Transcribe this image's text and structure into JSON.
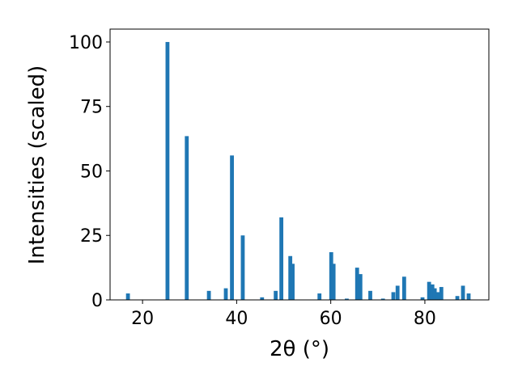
{
  "chart_data": {
    "type": "bar",
    "xlabel": "2θ (°)",
    "ylabel": "Intensities (scaled)",
    "color": "#1f77b4",
    "x": [
      16.9,
      25.3,
      29.4,
      34.1,
      37.7,
      39.0,
      41.3,
      45.4,
      48.3,
      49.5,
      51.4,
      51.9,
      57.6,
      60.1,
      60.6,
      63.4,
      65.6,
      66.3,
      68.4,
      71.1,
      73.3,
      74.2,
      75.6,
      79.5,
      80.9,
      81.6,
      82.1,
      82.8,
      83.5,
      86.9,
      88.1,
      89.3
    ],
    "values": [
      2.5,
      100,
      63.5,
      3.5,
      4.5,
      56,
      25,
      1,
      3.5,
      32,
      17,
      14,
      2.5,
      18.5,
      14,
      0.5,
      12.5,
      10,
      3.5,
      0.5,
      3,
      5.5,
      9,
      1,
      7,
      6,
      4.5,
      3,
      5,
      1.5,
      5.5,
      2.5
    ],
    "xlim": [
      13.1,
      93.6
    ],
    "ylim": [
      0,
      105
    ],
    "xticks": [
      20,
      40,
      60,
      80
    ],
    "yticks": [
      0,
      25,
      50,
      75,
      100
    ]
  }
}
